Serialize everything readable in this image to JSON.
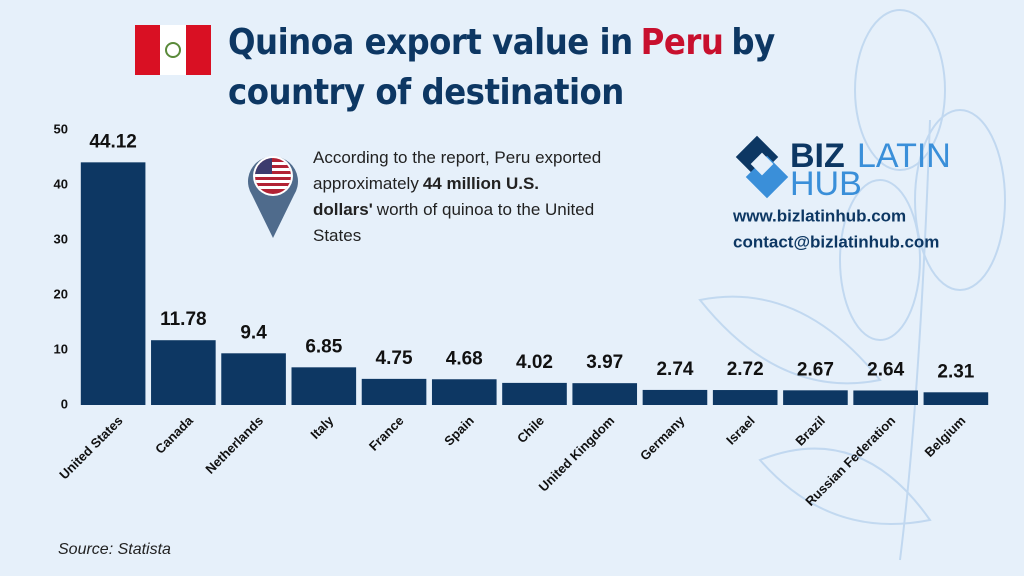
{
  "chart_data": {
    "type": "bar",
    "title": {
      "lead": "Quinoa export value in",
      "highlight": "Peru",
      "tail": "by country of destination"
    },
    "annotation": {
      "lead": "According to the report, Peru exported approximately",
      "bold": "44 million U.S. dollars'",
      "tail": "worth of quinoa to the United States"
    },
    "categories": [
      "United States",
      "Canada",
      "Netherlands",
      "Italy",
      "France",
      "Spain",
      "Chile",
      "United Kingdom",
      "Germany",
      "Israel",
      "Brazil",
      "Russian Federation",
      "Belgium"
    ],
    "values": [
      44.12,
      11.78,
      9.4,
      6.85,
      4.75,
      4.68,
      4.02,
      3.97,
      2.74,
      2.72,
      2.67,
      2.64,
      2.31
    ],
    "color": "#0d3763",
    "ylim": [
      0,
      50
    ],
    "yticks": [
      0,
      10,
      20,
      30,
      40,
      50
    ],
    "grid": false,
    "source": "Source: Statista"
  },
  "branding": {
    "logo": {
      "biz": "BIZ",
      "latin": "LATIN",
      "hub": "HUB"
    },
    "website": "www.bizlatinhub.com",
    "email": "contact@bizlatinhub.com"
  }
}
